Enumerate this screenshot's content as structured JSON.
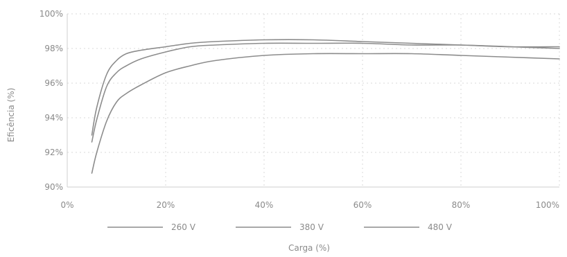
{
  "chart_data": {
    "type": "line",
    "xlabel": "Carga (%)",
    "ylabel": "Eficência (%)",
    "xlim": [
      0,
      100
    ],
    "ylim": [
      90,
      100
    ],
    "x_ticks": [
      0,
      20,
      40,
      60,
      80,
      100
    ],
    "x_tick_labels": [
      "0%",
      "20%",
      "40%",
      "60%",
      "80%",
      "100%"
    ],
    "y_ticks": [
      90,
      92,
      94,
      96,
      98,
      100
    ],
    "y_tick_labels": [
      "90%",
      "92%",
      "94%",
      "96%",
      "98%",
      "100%"
    ],
    "grid": true,
    "legend_position": "bottom",
    "series": [
      {
        "name": "260 V",
        "color": "#8c8c8c",
        "x": [
          5,
          6,
          8,
          10,
          12,
          15,
          20,
          25,
          30,
          40,
          50,
          60,
          70,
          80,
          90,
          100
        ],
        "y": [
          90.8,
          92.0,
          93.8,
          94.9,
          95.4,
          95.9,
          96.6,
          97.0,
          97.3,
          97.6,
          97.7,
          97.7,
          97.7,
          97.6,
          97.5,
          97.4
        ]
      },
      {
        "name": "380 V",
        "color": "#8c8c8c",
        "x": [
          5,
          6,
          8,
          10,
          12,
          15,
          20,
          25,
          30,
          40,
          50,
          60,
          70,
          80,
          90,
          100
        ],
        "y": [
          92.6,
          93.9,
          95.8,
          96.6,
          97.0,
          97.4,
          97.8,
          98.1,
          98.2,
          98.3,
          98.3,
          98.3,
          98.2,
          98.2,
          98.1,
          98.0
        ]
      },
      {
        "name": "480 V",
        "color": "#8c8c8c",
        "x": [
          5,
          6,
          8,
          10,
          12,
          15,
          20,
          25,
          30,
          40,
          50,
          60,
          70,
          80,
          90,
          100
        ],
        "y": [
          93.0,
          94.6,
          96.5,
          97.3,
          97.7,
          97.9,
          98.1,
          98.3,
          98.4,
          98.5,
          98.5,
          98.4,
          98.3,
          98.2,
          98.1,
          98.1
        ]
      }
    ]
  }
}
